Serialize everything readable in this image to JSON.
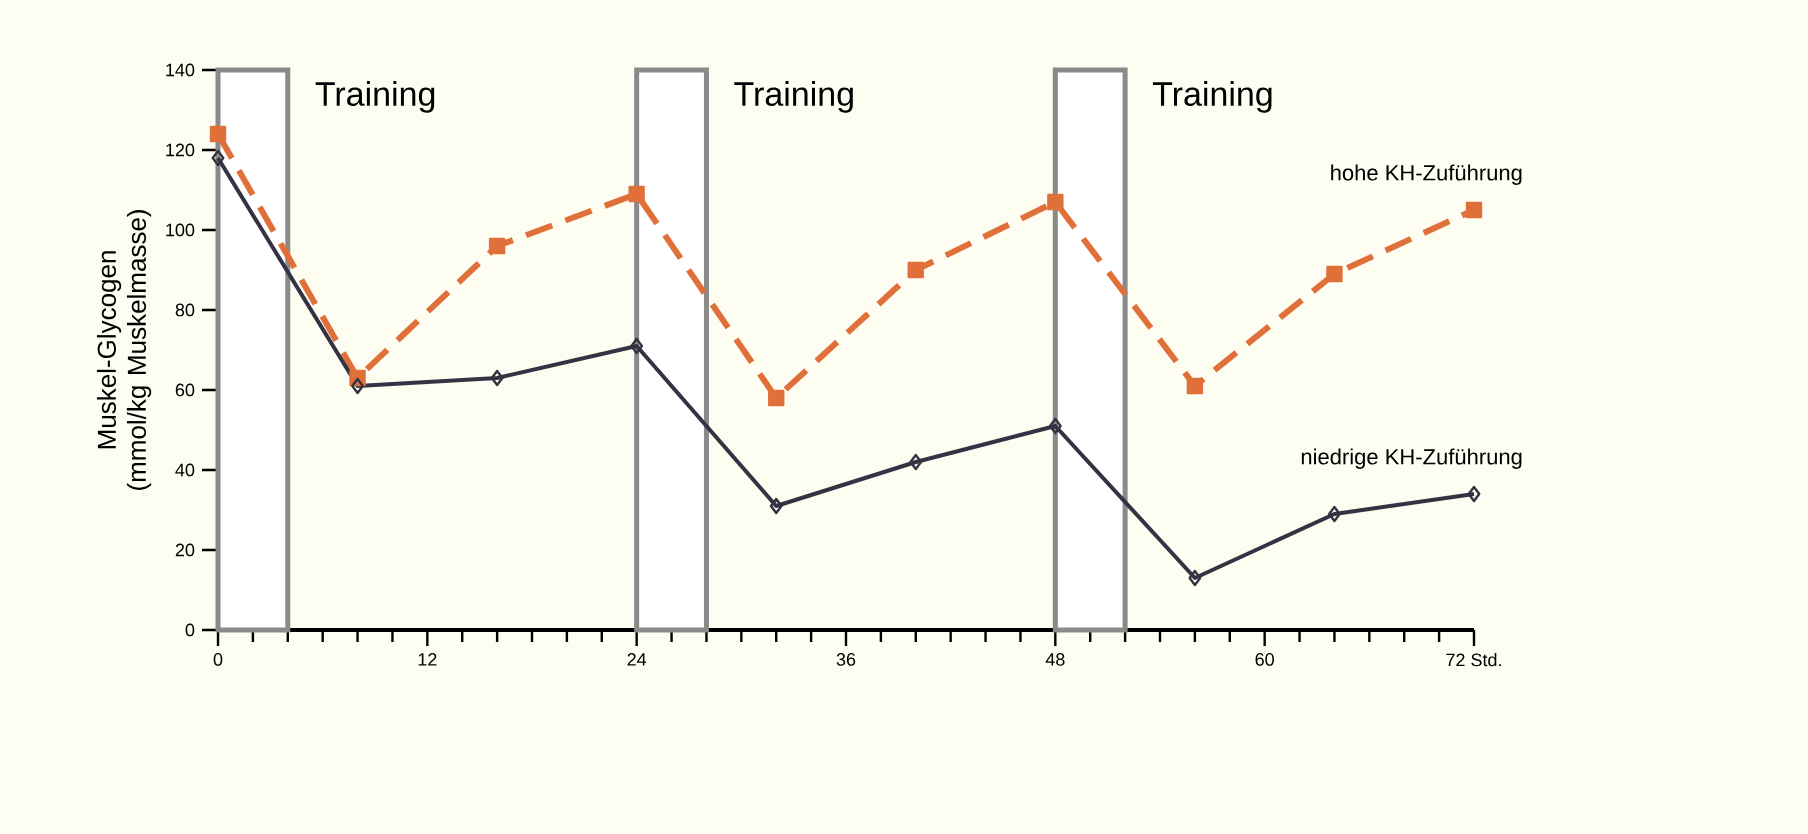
{
  "chart_data": {
    "type": "line",
    "ylabel": "Muskel-Glycogen (mmol/kg Muskelmasse)",
    "x": [
      0,
      8,
      16,
      24,
      32,
      40,
      48,
      56,
      64,
      72
    ],
    "series": [
      {
        "name": "hohe KH-Zuführung",
        "color": "#e0703a",
        "marker": "square",
        "line_style": "dashed",
        "values": [
          124,
          63,
          96,
          109,
          58,
          90,
          107,
          61,
          89,
          105
        ]
      },
      {
        "name": "niedrige KH-Zuführung",
        "color": "#333344",
        "marker": "diamond",
        "line_style": "solid",
        "values": [
          118,
          61,
          63,
          71,
          31,
          42,
          51,
          13,
          29,
          34
        ]
      }
    ],
    "xlim": [
      0,
      72
    ],
    "ylim": [
      0,
      140
    ],
    "xticks": [
      0,
      12,
      24,
      36,
      48,
      60,
      {
        "value": 72,
        "label": "72 Std."
      }
    ],
    "yticks": [
      0,
      20,
      40,
      60,
      80,
      100,
      120,
      140
    ],
    "bands": [
      {
        "axis": "x",
        "from": 0,
        "to": 4,
        "label": "Training",
        "color": "#8a8a8a"
      },
      {
        "axis": "x",
        "from": 24,
        "to": 28,
        "label": "Training",
        "color": "#8a8a8a"
      },
      {
        "axis": "x",
        "from": 48,
        "to": 52,
        "label": "Training",
        "color": "#8a8a8a"
      }
    ]
  }
}
